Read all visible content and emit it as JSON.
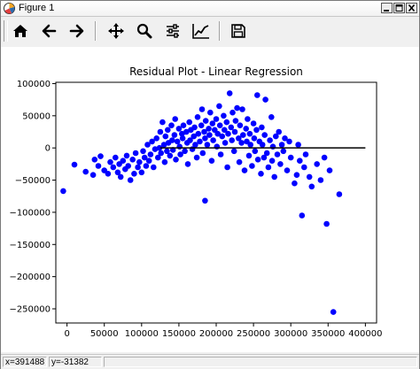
{
  "window": {
    "title": "Figure 1"
  },
  "toolbar": {
    "buttons": [
      {
        "name": "home-icon",
        "tooltip": ""
      },
      {
        "name": "back-arrow-icon",
        "tooltip": ""
      },
      {
        "name": "forward-arrow-icon",
        "tooltip": ""
      },
      {
        "name": "pan-icon",
        "tooltip": ""
      },
      {
        "name": "zoom-icon",
        "tooltip": ""
      },
      {
        "name": "subplots-icon",
        "tooltip": ""
      },
      {
        "name": "edit-axis-icon",
        "tooltip": ""
      },
      {
        "name": "save-icon",
        "tooltip": ""
      }
    ]
  },
  "status": {
    "x_readout": "x=391488",
    "y_readout": "y=-31382"
  },
  "colors": {
    "points": "#0000ff",
    "zero_line": "#000000"
  },
  "chart_data": {
    "type": "scatter",
    "title": "Residual Plot - Linear Regression",
    "xlabel": "",
    "ylabel": "",
    "xlim": [
      -15000,
      415000
    ],
    "ylim": [
      -272000,
      102000
    ],
    "xticks": [
      0,
      50000,
      100000,
      150000,
      200000,
      250000,
      300000,
      350000,
      400000
    ],
    "yticks": [
      100000,
      50000,
      0,
      -50000,
      -100000,
      -150000,
      -200000,
      -250000
    ],
    "grid": false,
    "reference_line": {
      "y": 0,
      "x_start": 125000,
      "x_end": 400000
    },
    "points": [
      [
        -5000,
        -67000
      ],
      [
        10000,
        -26000
      ],
      [
        25000,
        -37000
      ],
      [
        35000,
        -42000
      ],
      [
        37000,
        -18000
      ],
      [
        42000,
        -28000
      ],
      [
        45000,
        -13000
      ],
      [
        50000,
        -35000
      ],
      [
        55000,
        -40000
      ],
      [
        58000,
        -22000
      ],
      [
        62000,
        -30000
      ],
      [
        65000,
        -15000
      ],
      [
        68000,
        -38000
      ],
      [
        70000,
        -25000
      ],
      [
        72000,
        -45000
      ],
      [
        75000,
        -20000
      ],
      [
        78000,
        -33000
      ],
      [
        80000,
        -12000
      ],
      [
        82000,
        -28000
      ],
      [
        85000,
        -50000
      ],
      [
        88000,
        -18000
      ],
      [
        90000,
        -40000
      ],
      [
        92000,
        -8000
      ],
      [
        95000,
        -30000
      ],
      [
        97000,
        -22000
      ],
      [
        100000,
        -38000
      ],
      [
        102000,
        -5000
      ],
      [
        104000,
        -15000
      ],
      [
        106000,
        -28000
      ],
      [
        108000,
        5000
      ],
      [
        110000,
        -20000
      ],
      [
        112000,
        -10000
      ],
      [
        114000,
        10000
      ],
      [
        116000,
        -30000
      ],
      [
        118000,
        -2000
      ],
      [
        120000,
        15000
      ],
      [
        122000,
        -15000
      ],
      [
        124000,
        0
      ],
      [
        125000,
        25000
      ],
      [
        126000,
        -8000
      ],
      [
        128000,
        40000
      ],
      [
        130000,
        5000
      ],
      [
        131000,
        -22000
      ],
      [
        132000,
        18000
      ],
      [
        134000,
        -5000
      ],
      [
        135000,
        28000
      ],
      [
        136000,
        8000
      ],
      [
        138000,
        -12000
      ],
      [
        140000,
        35000
      ],
      [
        141000,
        12000
      ],
      [
        142000,
        -3000
      ],
      [
        144000,
        20000
      ],
      [
        145000,
        45000
      ],
      [
        146000,
        -18000
      ],
      [
        148000,
        10000
      ],
      [
        150000,
        30000
      ],
      [
        151000,
        2000
      ],
      [
        152000,
        -10000
      ],
      [
        154000,
        22000
      ],
      [
        155000,
        15000
      ],
      [
        156000,
        35000
      ],
      [
        158000,
        -5000
      ],
      [
        160000,
        25000
      ],
      [
        161000,
        8000
      ],
      [
        162000,
        -25000
      ],
      [
        164000,
        40000
      ],
      [
        165000,
        12000
      ],
      [
        166000,
        28000
      ],
      [
        168000,
        -2000
      ],
      [
        170000,
        18000
      ],
      [
        171000,
        32000
      ],
      [
        172000,
        5000
      ],
      [
        174000,
        -15000
      ],
      [
        175000,
        48000
      ],
      [
        176000,
        22000
      ],
      [
        178000,
        10000
      ],
      [
        180000,
        35000
      ],
      [
        181000,
        60000
      ],
      [
        182000,
        -8000
      ],
      [
        184000,
        25000
      ],
      [
        185000,
        15000
      ],
      [
        186000,
        42000
      ],
      [
        188000,
        5000
      ],
      [
        190000,
        30000
      ],
      [
        191000,
        20000
      ],
      [
        192000,
        55000
      ],
      [
        194000,
        -20000
      ],
      [
        195000,
        38000
      ],
      [
        196000,
        12000
      ],
      [
        198000,
        28000
      ],
      [
        200000,
        45000
      ],
      [
        201000,
        2000
      ],
      [
        202000,
        22000
      ],
      [
        204000,
        65000
      ],
      [
        205000,
        35000
      ],
      [
        206000,
        -10000
      ],
      [
        208000,
        18000
      ],
      [
        210000,
        50000
      ],
      [
        211000,
        28000
      ],
      [
        212000,
        8000
      ],
      [
        214000,
        40000
      ],
      [
        215000,
        -30000
      ],
      [
        216000,
        22000
      ],
      [
        218000,
        85000
      ],
      [
        220000,
        32000
      ],
      [
        221000,
        12000
      ],
      [
        222000,
        55000
      ],
      [
        224000,
        -5000
      ],
      [
        225000,
        25000
      ],
      [
        226000,
        42000
      ],
      [
        228000,
        62000
      ],
      [
        230000,
        15000
      ],
      [
        231000,
        -22000
      ],
      [
        232000,
        35000
      ],
      [
        234000,
        8000
      ],
      [
        235000,
        60000
      ],
      [
        236000,
        20000
      ],
      [
        238000,
        -35000
      ],
      [
        240000,
        30000
      ],
      [
        241000,
        10000
      ],
      [
        242000,
        45000
      ],
      [
        244000,
        -12000
      ],
      [
        245000,
        22000
      ],
      [
        246000,
        5000
      ],
      [
        248000,
        -28000
      ],
      [
        250000,
        38000
      ],
      [
        251000,
        15000
      ],
      [
        252000,
        -5000
      ],
      [
        254000,
        28000
      ],
      [
        255000,
        82000
      ],
      [
        256000,
        -18000
      ],
      [
        258000,
        10000
      ],
      [
        260000,
        -40000
      ],
      [
        261000,
        32000
      ],
      [
        262000,
        5000
      ],
      [
        264000,
        -15000
      ],
      [
        265000,
        20000
      ],
      [
        266000,
        75000
      ],
      [
        268000,
        -8000
      ],
      [
        270000,
        -30000
      ],
      [
        272000,
        12000
      ],
      [
        274000,
        48000
      ],
      [
        275000,
        -20000
      ],
      [
        276000,
        2000
      ],
      [
        278000,
        -45000
      ],
      [
        280000,
        18000
      ],
      [
        282000,
        -10000
      ],
      [
        284000,
        25000
      ],
      [
        286000,
        -25000
      ],
      [
        288000,
        5000
      ],
      [
        290000,
        -5000
      ],
      [
        292000,
        15000
      ],
      [
        295000,
        -35000
      ],
      [
        298000,
        10000
      ],
      [
        300000,
        -15000
      ],
      [
        305000,
        -55000
      ],
      [
        308000,
        -42000
      ],
      [
        310000,
        5000
      ],
      [
        312000,
        -20000
      ],
      [
        315000,
        -105000
      ],
      [
        318000,
        -30000
      ],
      [
        320000,
        -10000
      ],
      [
        325000,
        -45000
      ],
      [
        328000,
        -60000
      ],
      [
        335000,
        -25000
      ],
      [
        340000,
        -50000
      ],
      [
        345000,
        -15000
      ],
      [
        348000,
        -118000
      ],
      [
        352000,
        -35000
      ],
      [
        357000,
        -255000
      ],
      [
        365000,
        -72000
      ],
      [
        185000,
        -82000
      ]
    ]
  }
}
